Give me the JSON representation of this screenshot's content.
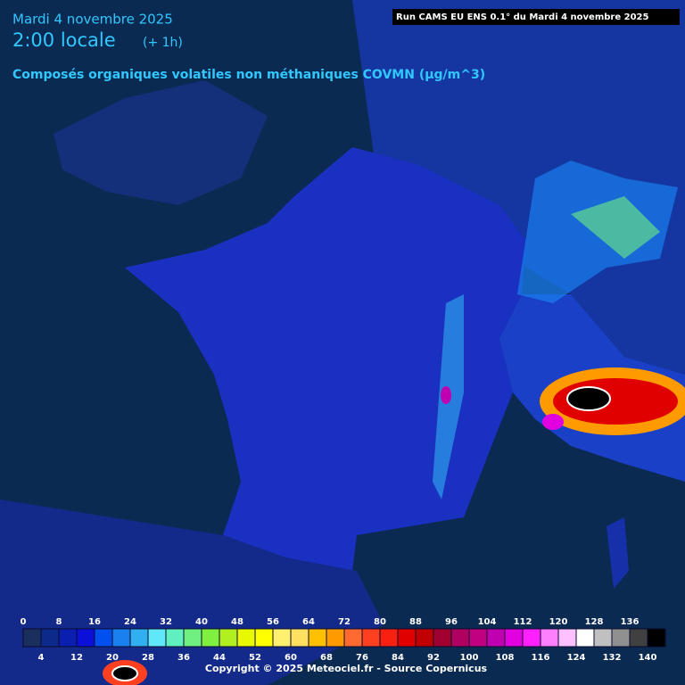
{
  "header": {
    "date": "Mardi 4 novembre 2025",
    "time": "2:00 locale",
    "offset": "(+ 1h)",
    "variable": "Composés organiques volatiles non méthaniques COVMN (µg/m^3)",
    "run": "Run CAMS EU ENS 0.1° du Mardi 4 novembre 2025"
  },
  "legend": {
    "ticks_top": [
      0,
      8,
      16,
      24,
      32,
      40,
      48,
      56,
      64,
      72,
      80,
      88,
      96,
      104,
      112,
      120,
      128,
      136
    ],
    "ticks_bottom": [
      4,
      12,
      20,
      28,
      36,
      44,
      52,
      60,
      68,
      76,
      84,
      92,
      100,
      108,
      116,
      124,
      132,
      140
    ],
    "colors": [
      "#1b2f5e",
      "#0c2a8a",
      "#0a1fb0",
      "#0a10d8",
      "#0050f0",
      "#1a80f0",
      "#30b0f0",
      "#60e8f8",
      "#60f0c0",
      "#70f080",
      "#80f040",
      "#b0f020",
      "#e8f800",
      "#ffff00",
      "#fff070",
      "#ffe060",
      "#ffc000",
      "#ff9a00",
      "#ff6a30",
      "#ff4020",
      "#f82010",
      "#e00000",
      "#c00000",
      "#a00030",
      "#b00060",
      "#c00080",
      "#c000b0",
      "#e000e0",
      "#ff20ff",
      "#ff80ff",
      "#ffc0ff",
      "#ffffff",
      "#c0c0c0",
      "#909090",
      "#404040",
      "#000000"
    ]
  },
  "footer": {
    "copyright": "Copyright © 2025 Meteociel.fr - Source Copernicus"
  }
}
